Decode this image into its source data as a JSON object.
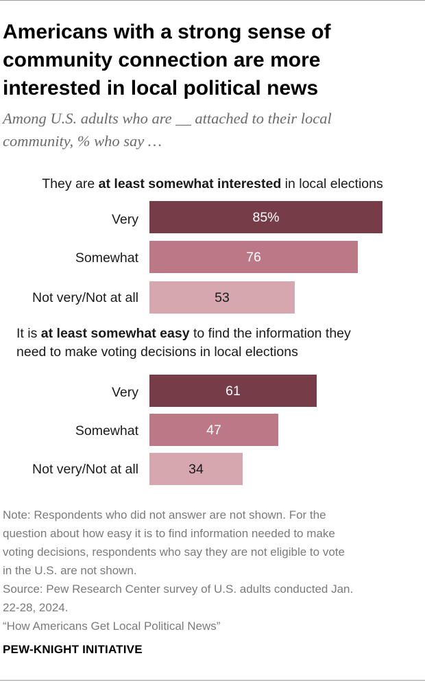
{
  "header": {
    "title_lines": [
      "Americans with a strong sense of",
      "community connection are more",
      "interested in local political news"
    ],
    "subtitle_lines": [
      "Among U.S. adults who are __ attached to their local",
      "community, % who say …"
    ]
  },
  "colors": {
    "very": "#763d48",
    "somewhat": "#bc7985",
    "not_very": "#d6a7ae"
  },
  "chart_data": [
    {
      "type": "bar",
      "orientation": "horizontal",
      "title": "They are at least somewhat interested in local elections",
      "title_parts": {
        "pre": "They are ",
        "bold": "at least somewhat interested",
        "post": " in local elections"
      },
      "categories": [
        "Very",
        "Somewhat",
        "Not very/Not at all"
      ],
      "values": [
        85,
        76,
        53
      ],
      "value_labels": [
        "85%",
        "76",
        "53"
      ],
      "xlim": [
        0,
        100
      ]
    },
    {
      "type": "bar",
      "orientation": "horizontal",
      "title": "It is at least somewhat easy to find the information they need to make voting decisions in local elections",
      "title_parts": {
        "pre": "It is ",
        "bold": "at least somewhat easy",
        "post": " to find the information they",
        "line2": "need to make voting decisions in local elections"
      },
      "categories": [
        "Very",
        "Somewhat",
        "Not very/Not at all"
      ],
      "values": [
        61,
        47,
        34
      ],
      "value_labels": [
        "61",
        "47",
        "34"
      ],
      "xlim": [
        0,
        100
      ]
    }
  ],
  "footer": {
    "note_lines": [
      "Note: Respondents who did not answer are not shown. For the",
      "question about how easy it is to find information needed to make",
      "voting decisions, respondents who say they are not eligible to vote",
      "in the U.S. are not shown.",
      "Source: Pew Research Center survey of U.S. adults conducted Jan.",
      "22-28, 2024.",
      "“How Americans Get Local Political News”"
    ],
    "brand": "PEW-KNIGHT INITIATIVE"
  }
}
